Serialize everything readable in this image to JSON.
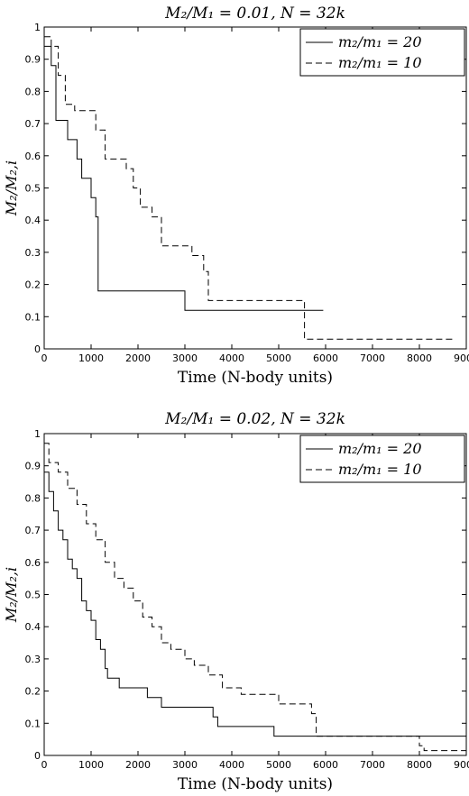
{
  "chart_data": [
    {
      "type": "line",
      "title": "M₂/M₁ = 0.01, N = 32k",
      "xlabel": "Time (N-body units)",
      "ylabel": "M₂/M₂,i",
      "xlim": [
        0,
        9000
      ],
      "ylim": [
        0,
        1
      ],
      "xticks": [
        "0",
        "1000",
        "2000",
        "3000",
        "4000",
        "5000",
        "6000",
        "7000",
        "8000",
        "9000"
      ],
      "yticks": [
        "0",
        "0.1",
        "0.2",
        "0.3",
        "0.4",
        "0.5",
        "0.6",
        "0.7",
        "0.8",
        "0.9",
        "1"
      ],
      "grid": false,
      "legend": "top-right",
      "series": [
        {
          "name": "m₂/m₁ = 20",
          "style": "solid",
          "x": [
            0,
            150,
            250,
            500,
            700,
            800,
            1000,
            1100,
            1150,
            3000,
            5950
          ],
          "y": [
            0.94,
            0.88,
            0.71,
            0.65,
            0.59,
            0.53,
            0.47,
            0.41,
            0.18,
            0.12,
            0.12
          ]
        },
        {
          "name": "m₂/m₁ = 10",
          "style": "dashed",
          "x": [
            0,
            150,
            300,
            450,
            650,
            800,
            1100,
            1300,
            1500,
            1750,
            1900,
            2050,
            2300,
            2500,
            3150,
            3400,
            3500,
            5550,
            8700
          ],
          "y": [
            0.97,
            0.94,
            0.85,
            0.76,
            0.74,
            0.74,
            0.68,
            0.59,
            0.59,
            0.56,
            0.5,
            0.44,
            0.41,
            0.32,
            0.29,
            0.24,
            0.15,
            0.03,
            0.03
          ]
        }
      ]
    },
    {
      "type": "line",
      "title": "M₂/M₁ = 0.02, N = 32k",
      "xlabel": "Time (N-body units)",
      "ylabel": "M₂/M₂,i",
      "xlim": [
        0,
        9000
      ],
      "ylim": [
        0,
        1
      ],
      "xticks": [
        "0",
        "1000",
        "2000",
        "3000",
        "4000",
        "5000",
        "6000",
        "7000",
        "8000",
        "9000"
      ],
      "yticks": [
        "0",
        "0.1",
        "0.2",
        "0.3",
        "0.4",
        "0.5",
        "0.6",
        "0.7",
        "0.8",
        "0.9",
        "1"
      ],
      "grid": false,
      "legend": "top-right",
      "series": [
        {
          "name": "m₂/m₁ = 20",
          "style": "solid",
          "x": [
            0,
            100,
            200,
            300,
            400,
            500,
            600,
            700,
            800,
            900,
            1000,
            1100,
            1200,
            1300,
            1350,
            1400,
            1600,
            2000,
            2200,
            2500,
            3600,
            3700,
            4900,
            9000
          ],
          "y": [
            0.88,
            0.82,
            0.76,
            0.7,
            0.67,
            0.61,
            0.58,
            0.55,
            0.48,
            0.45,
            0.42,
            0.36,
            0.33,
            0.27,
            0.24,
            0.24,
            0.21,
            0.21,
            0.18,
            0.15,
            0.12,
            0.09,
            0.06,
            0.06
          ]
        },
        {
          "name": "m₂/m₁ = 10",
          "style": "dashed",
          "x": [
            0,
            100,
            300,
            500,
            700,
            900,
            1100,
            1300,
            1500,
            1700,
            1900,
            2100,
            2300,
            2500,
            2700,
            3000,
            3200,
            3500,
            3800,
            4200,
            5000,
            5700,
            5800,
            8000,
            8100,
            9000
          ],
          "y": [
            0.97,
            0.91,
            0.88,
            0.83,
            0.78,
            0.72,
            0.67,
            0.6,
            0.55,
            0.52,
            0.48,
            0.43,
            0.4,
            0.35,
            0.33,
            0.3,
            0.28,
            0.25,
            0.21,
            0.19,
            0.16,
            0.13,
            0.06,
            0.03,
            0.015,
            0.015
          ]
        }
      ]
    }
  ]
}
